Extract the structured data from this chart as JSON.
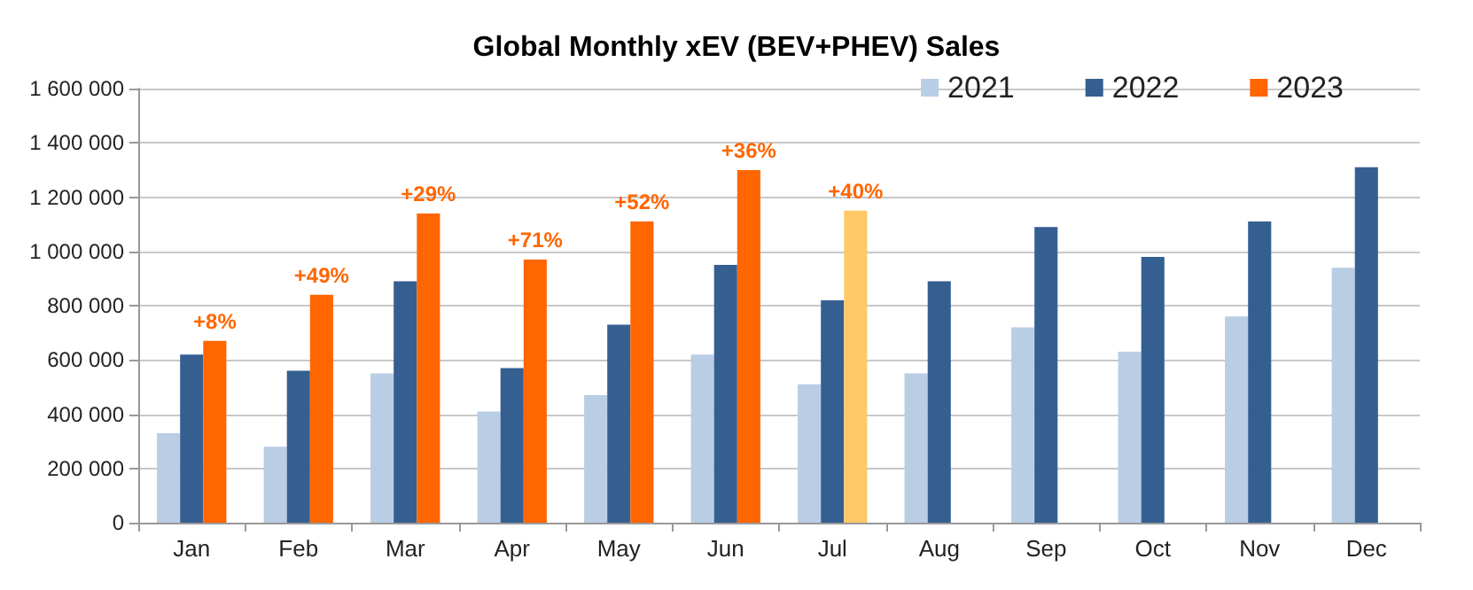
{
  "chart_data": {
    "type": "bar",
    "title": "Global Monthly xEV (BEV+PHEV) Sales",
    "categories": [
      "Jan",
      "Feb",
      "Mar",
      "Apr",
      "May",
      "Jun",
      "Jul",
      "Aug",
      "Sep",
      "Oct",
      "Nov",
      "Dec"
    ],
    "series": [
      {
        "name": "2021",
        "color": "#b9cde5",
        "values": [
          330000,
          280000,
          550000,
          410000,
          470000,
          620000,
          510000,
          550000,
          720000,
          630000,
          760000,
          940000
        ]
      },
      {
        "name": "2022",
        "color": "#355f91",
        "values": [
          620000,
          560000,
          890000,
          570000,
          730000,
          950000,
          820000,
          890000,
          1090000,
          980000,
          1110000,
          1310000
        ]
      },
      {
        "name": "2023",
        "color": "#ff6600",
        "colors": [
          "#ff6600",
          "#ff6600",
          "#ff6600",
          "#ff6600",
          "#ff6600",
          "#ff6600",
          "#ffc966",
          null,
          null,
          null,
          null,
          null
        ],
        "values": [
          670000,
          840000,
          1140000,
          970000,
          1110000,
          1300000,
          1150000,
          null,
          null,
          null,
          null,
          null
        ]
      }
    ],
    "annotations": [
      "+8%",
      "+49%",
      "+29%",
      "+71%",
      "+52%",
      "+36%",
      "+40%"
    ],
    "ylim": [
      0,
      1600000
    ],
    "yticks": [
      0,
      {
        "value": 200000,
        "label": "200 000"
      },
      {
        "value": 400000,
        "label": "400 000"
      },
      {
        "value": 600000,
        "label": "600 000"
      },
      {
        "value": 800000,
        "label": "800 000"
      },
      {
        "value": 1000000,
        "label": "1 000 000"
      },
      {
        "value": 1200000,
        "label": "1 200 000"
      },
      {
        "value": 1400000,
        "label": "1 400 000"
      },
      {
        "value": 1600000,
        "label": "1 600 000"
      }
    ],
    "grid": "y",
    "legend": "top right"
  }
}
